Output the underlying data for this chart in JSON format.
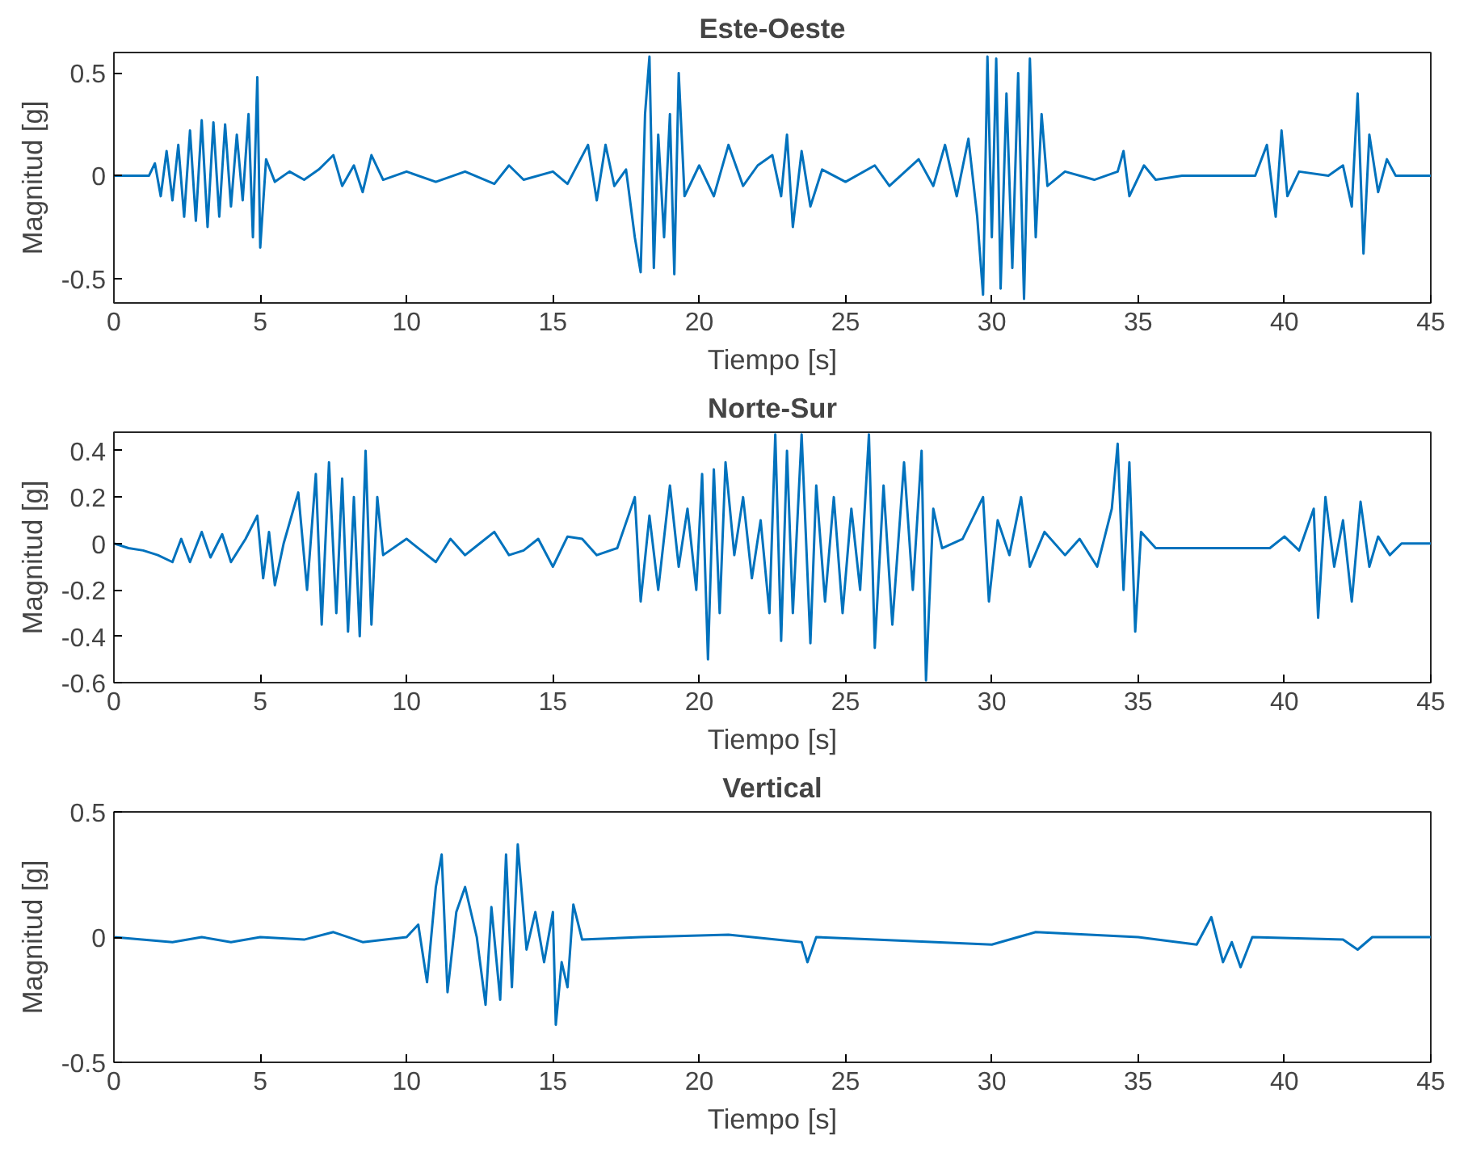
{
  "chart_data": [
    {
      "type": "line",
      "title": "Este-Oeste",
      "xlabel": "Tiempo [s]",
      "ylabel": "Magnitud [g]",
      "color": "#0072bd",
      "grid": false,
      "xlim": [
        0,
        45
      ],
      "ylim": [
        -0.62,
        0.6
      ],
      "xticks": [
        0,
        5,
        10,
        15,
        20,
        25,
        30,
        35,
        40,
        45
      ],
      "yticks": [
        -0.5,
        0,
        0.5
      ],
      "x": [
        0,
        1.2,
        1.4,
        1.6,
        1.8,
        2.0,
        2.2,
        2.4,
        2.6,
        2.8,
        3.0,
        3.2,
        3.4,
        3.6,
        3.8,
        4.0,
        4.2,
        4.4,
        4.6,
        4.75,
        4.9,
        5.0,
        5.2,
        5.5,
        6.0,
        6.5,
        7.0,
        7.5,
        7.8,
        8.2,
        8.5,
        8.8,
        9.2,
        10,
        11,
        12,
        13,
        13.5,
        14,
        15,
        15.5,
        16.2,
        16.5,
        16.8,
        17.1,
        17.5,
        17.8,
        18.0,
        18.15,
        18.3,
        18.45,
        18.6,
        18.8,
        19.0,
        19.15,
        19.3,
        19.5,
        20.0,
        20.5,
        21.0,
        21.5,
        22.0,
        22.5,
        22.8,
        23.0,
        23.2,
        23.5,
        23.8,
        24.2,
        25,
        26,
        26.5,
        27.5,
        28.0,
        28.4,
        28.8,
        29.2,
        29.5,
        29.7,
        29.85,
        30.0,
        30.15,
        30.3,
        30.5,
        30.7,
        30.9,
        31.1,
        31.3,
        31.5,
        31.7,
        31.9,
        32.5,
        33.5,
        34.3,
        34.5,
        34.7,
        35.2,
        35.6,
        36.5,
        39.0,
        39.4,
        39.7,
        39.9,
        40.1,
        40.5,
        41.5,
        42.0,
        42.3,
        42.5,
        42.7,
        42.9,
        43.2,
        43.5,
        43.8,
        45
      ],
      "values": [
        0,
        0,
        0.06,
        -0.1,
        0.12,
        -0.12,
        0.15,
        -0.2,
        0.22,
        -0.22,
        0.27,
        -0.25,
        0.26,
        -0.2,
        0.25,
        -0.15,
        0.2,
        -0.12,
        0.3,
        -0.3,
        0.48,
        -0.35,
        0.08,
        -0.03,
        0.02,
        -0.02,
        0.03,
        0.1,
        -0.05,
        0.05,
        -0.08,
        0.1,
        -0.02,
        0.02,
        -0.03,
        0.02,
        -0.04,
        0.05,
        -0.02,
        0.02,
        -0.04,
        0.15,
        -0.12,
        0.15,
        -0.05,
        0.03,
        -0.3,
        -0.47,
        0.3,
        0.58,
        -0.45,
        0.2,
        -0.3,
        0.3,
        -0.48,
        0.5,
        -0.1,
        0.05,
        -0.1,
        0.15,
        -0.05,
        0.05,
        0.1,
        -0.1,
        0.2,
        -0.25,
        0.12,
        -0.15,
        0.03,
        -0.03,
        0.05,
        -0.05,
        0.08,
        -0.05,
        0.15,
        -0.1,
        0.18,
        -0.2,
        -0.58,
        0.58,
        -0.3,
        0.57,
        -0.55,
        0.4,
        -0.45,
        0.5,
        -0.6,
        0.57,
        -0.3,
        0.3,
        -0.05,
        0.02,
        -0.02,
        0.02,
        0.12,
        -0.1,
        0.05,
        -0.02,
        0,
        0,
        0.15,
        -0.2,
        0.22,
        -0.1,
        0.02,
        0,
        0.05,
        -0.15,
        0.4,
        -0.38,
        0.2,
        -0.08,
        0.08,
        0,
        0
      ]
    },
    {
      "type": "line",
      "title": "Norte-Sur",
      "xlabel": "Tiempo [s]",
      "ylabel": "Magnitud [g]",
      "color": "#0072bd",
      "grid": false,
      "xlim": [
        0,
        45
      ],
      "ylim": [
        -0.6,
        0.48
      ],
      "xticks": [
        0,
        5,
        10,
        15,
        20,
        25,
        30,
        35,
        40,
        45
      ],
      "yticks": [
        -0.6,
        -0.4,
        -0.2,
        0,
        0.2,
        0.4
      ],
      "x": [
        0,
        0.5,
        1,
        1.5,
        2,
        2.3,
        2.6,
        3,
        3.3,
        3.7,
        4,
        4.5,
        4.9,
        5.1,
        5.3,
        5.5,
        5.8,
        6.3,
        6.6,
        6.9,
        7.1,
        7.35,
        7.6,
        7.8,
        8.0,
        8.2,
        8.4,
        8.6,
        8.8,
        9.0,
        9.2,
        10,
        10.5,
        11,
        11.5,
        12,
        12.5,
        13,
        13.5,
        14,
        14.5,
        15,
        15.5,
        16,
        16.5,
        17.2,
        17.8,
        18,
        18.3,
        18.6,
        19,
        19.3,
        19.6,
        19.9,
        20.1,
        20.3,
        20.5,
        20.7,
        20.9,
        21.2,
        21.5,
        21.8,
        22.1,
        22.4,
        22.6,
        22.8,
        23.0,
        23.2,
        23.5,
        23.8,
        24.0,
        24.3,
        24.6,
        24.9,
        25.2,
        25.5,
        25.8,
        26.0,
        26.3,
        26.6,
        27.0,
        27.3,
        27.6,
        27.75,
        28.0,
        28.3,
        29.0,
        29.7,
        29.9,
        30.2,
        30.6,
        31.0,
        31.3,
        31.8,
        32.5,
        33.0,
        33.6,
        34.1,
        34.3,
        34.5,
        34.7,
        34.9,
        35.1,
        35.6,
        39.5,
        40,
        40.5,
        41,
        41.15,
        41.4,
        41.7,
        42.0,
        42.3,
        42.6,
        42.9,
        43.2,
        43.6,
        44,
        45
      ],
      "values": [
        0,
        -0.02,
        -0.03,
        -0.05,
        -0.08,
        0.02,
        -0.08,
        0.05,
        -0.06,
        0.04,
        -0.08,
        0.02,
        0.12,
        -0.15,
        0.05,
        -0.18,
        0,
        0.22,
        -0.2,
        0.3,
        -0.35,
        0.35,
        -0.3,
        0.28,
        -0.38,
        0.2,
        -0.4,
        0.4,
        -0.35,
        0.2,
        -0.05,
        0.02,
        -0.03,
        -0.08,
        0.02,
        -0.05,
        0,
        0.05,
        -0.05,
        -0.03,
        0.02,
        -0.1,
        0.03,
        0.02,
        -0.05,
        -0.02,
        0.2,
        -0.25,
        0.12,
        -0.2,
        0.25,
        -0.1,
        0.15,
        -0.2,
        0.3,
        -0.5,
        0.32,
        -0.3,
        0.35,
        -0.05,
        0.2,
        -0.15,
        0.1,
        -0.3,
        0.47,
        -0.42,
        0.4,
        -0.3,
        0.47,
        -0.43,
        0.25,
        -0.25,
        0.2,
        -0.3,
        0.15,
        -0.2,
        0.47,
        -0.45,
        0.25,
        -0.35,
        0.35,
        -0.2,
        0.4,
        -0.59,
        0.15,
        -0.02,
        0.02,
        0.2,
        -0.25,
        0.1,
        -0.05,
        0.2,
        -0.1,
        0.05,
        -0.05,
        0.02,
        -0.1,
        0.15,
        0.43,
        -0.2,
        0.35,
        -0.38,
        0.05,
        -0.02,
        -0.02,
        0.03,
        -0.03,
        0.15,
        -0.32,
        0.2,
        -0.1,
        0.1,
        -0.25,
        0.18,
        -0.1,
        0.03,
        -0.05,
        0,
        0
      ]
    },
    {
      "type": "line",
      "title": "Vertical",
      "xlabel": "Tiempo [s]",
      "ylabel": "Magnitud [g]",
      "color": "#0072bd",
      "grid": false,
      "xlim": [
        0,
        45
      ],
      "ylim": [
        -0.5,
        0.5
      ],
      "xticks": [
        0,
        5,
        10,
        15,
        20,
        25,
        30,
        35,
        40,
        45
      ],
      "yticks": [
        -0.5,
        0,
        0.5
      ],
      "x": [
        0,
        2,
        3,
        4,
        5,
        6.5,
        7.5,
        8.5,
        10,
        10.4,
        10.7,
        11.0,
        11.2,
        11.4,
        11.7,
        12.0,
        12.4,
        12.7,
        12.9,
        13.2,
        13.4,
        13.6,
        13.8,
        14.1,
        14.4,
        14.7,
        15.0,
        15.1,
        15.3,
        15.5,
        15.7,
        16,
        18,
        21,
        23.5,
        23.7,
        24,
        26,
        30,
        31.5,
        35,
        37,
        37.5,
        37.9,
        38.2,
        38.5,
        38.9,
        42,
        42.5,
        43,
        45
      ],
      "values": [
        0,
        -0.02,
        0,
        -0.02,
        0,
        -0.01,
        0.02,
        -0.02,
        0,
        0.05,
        -0.18,
        0.2,
        0.33,
        -0.22,
        0.1,
        0.2,
        0,
        -0.27,
        0.12,
        -0.25,
        0.33,
        -0.2,
        0.37,
        -0.05,
        0.1,
        -0.1,
        0.1,
        -0.35,
        -0.1,
        -0.2,
        0.13,
        -0.01,
        0,
        0.01,
        -0.02,
        -0.1,
        0,
        -0.01,
        -0.03,
        0.02,
        0,
        -0.03,
        0.08,
        -0.1,
        -0.02,
        -0.12,
        0,
        -0.01,
        -0.05,
        0,
        0
      ]
    }
  ]
}
